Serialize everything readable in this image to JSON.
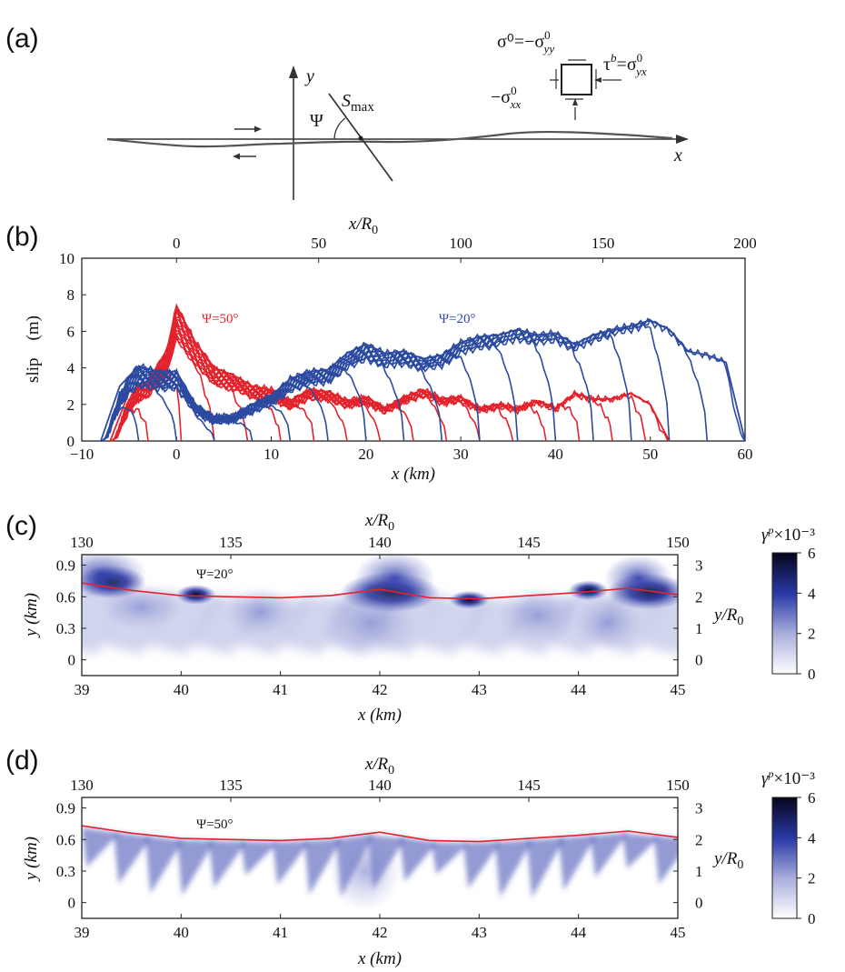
{
  "figure": {
    "panel_labels": [
      "(a)",
      "(b)",
      "(c)",
      "(d)"
    ],
    "panel_a": {
      "y_axis": "y",
      "x_axis": "x",
      "psi": "Ψ",
      "smax": "S",
      "smax_sub": "max",
      "sigma0": "σ⁰=−σ",
      "sigma0_sup": "0",
      "sigma0_sub": "yy",
      "tau": "τ",
      "tau_sup": "b",
      "tau_eq": "=σ",
      "tau_eq_sup": "0",
      "tau_eq_sub": "yx",
      "sxx": "−σ",
      "sxx_sup": "0",
      "sxx_sub": "xx"
    },
    "panel_b": {
      "top_axis_label": "x/R",
      "top_axis_sub": "0",
      "ylabel": "slip    (m)",
      "xlabel": "x (km)",
      "red_label": "Ψ=50°",
      "blue_label": "Ψ=20°"
    },
    "panel_c": {
      "top_axis_label": "x/R",
      "top_axis_sub": "0",
      "ylabel": "y (km)",
      "right_label": "y/R",
      "right_sub": "0",
      "xlabel": "x (km)",
      "annotation": "Ψ=20°",
      "colorbar_title": "γ",
      "colorbar_sup": "p",
      "colorbar_unit": "×10⁻³"
    },
    "panel_d": {
      "top_axis_label": "x/R",
      "top_axis_sub": "0",
      "ylabel": "y (km)",
      "right_label": "y/R",
      "right_sub": "0",
      "xlabel": "x (km)",
      "annotation": "Ψ=50°",
      "colorbar_title": "γ",
      "colorbar_sup": "p",
      "colorbar_unit": "×10⁻³"
    }
  },
  "chart_data": [
    {
      "type": "line",
      "panel": "(b)",
      "xlabel": "x (km)",
      "ylabel": "slip    (m)",
      "xlim": [
        -10,
        60
      ],
      "ylim": [
        0,
        10
      ],
      "x_ticks": [
        -10,
        0,
        10,
        20,
        30,
        40,
        50,
        60
      ],
      "y_ticks": [
        0,
        2,
        4,
        6,
        8,
        10
      ],
      "top_axis": {
        "label": "x/R0",
        "ticks": [
          0,
          50,
          100,
          150,
          200
        ]
      },
      "colors": {
        "red": "#e3232c",
        "blue": "#2b4aa0"
      },
      "series": [
        {
          "name": "Ψ=50°",
          "color": "#e3232c",
          "x": [
            -7,
            -5,
            -3,
            -1,
            0,
            2,
            4,
            6,
            8,
            10,
            12,
            14,
            16,
            18,
            20,
            22,
            24,
            26,
            28,
            30,
            32,
            34,
            36,
            38,
            40,
            42,
            44,
            46,
            48,
            50,
            52
          ],
          "y": [
            0,
            2.7,
            3.3,
            5.0,
            7.4,
            5.4,
            4.0,
            3.6,
            3.0,
            2.8,
            2.2,
            2.8,
            2.7,
            2.2,
            2.4,
            1.8,
            2.4,
            2.8,
            2.3,
            2.4,
            1.8,
            2.0,
            1.8,
            2.2,
            1.8,
            2.6,
            2.3,
            2.3,
            2.6,
            2.0,
            0
          ]
        },
        {
          "name": "Ψ=20°",
          "color": "#2b4aa0",
          "x": [
            -8,
            -6,
            -4,
            -2,
            0,
            2,
            4,
            6,
            8,
            10,
            12,
            14,
            16,
            18,
            20,
            22,
            24,
            26,
            28,
            30,
            32,
            34,
            36,
            38,
            40,
            42,
            44,
            46,
            48,
            50,
            52,
            54,
            56,
            58,
            60
          ],
          "y": [
            0,
            3.0,
            4.1,
            3.8,
            3.8,
            2.0,
            1.3,
            1.4,
            2.0,
            2.5,
            3.4,
            3.8,
            3.9,
            4.8,
            5.3,
            4.8,
            4.9,
            4.5,
            4.7,
            5.4,
            5.7,
            5.8,
            6.1,
            5.8,
            5.9,
            5.3,
            5.8,
            6.1,
            6.3,
            6.6,
            6.1,
            4.9,
            4.7,
            4.3,
            0
          ]
        }
      ]
    },
    {
      "type": "heatmap",
      "panel": "(c)",
      "xlabel": "x (km)",
      "ylabel": "y (km)",
      "xlim": [
        39,
        45
      ],
      "ylim": [
        -0.15,
        1.0
      ],
      "x_ticks": [
        39,
        40,
        41,
        42,
        43,
        44,
        45
      ],
      "y_ticks": [
        0,
        0.3,
        0.6,
        0.9
      ],
      "top_axis": {
        "label": "x/R0",
        "ticks": [
          130,
          135,
          140,
          145,
          150
        ]
      },
      "right_axis": {
        "label": "y/R0",
        "ticks": [
          0,
          1,
          2,
          3
        ]
      },
      "colorbar": {
        "label": "γp×10−3",
        "ticks": [
          0,
          2,
          4,
          6
        ]
      },
      "fault_trace": {
        "color": "#e3232c",
        "x": [
          39,
          39.5,
          40,
          40.5,
          41,
          41.5,
          42,
          42.5,
          43,
          43.5,
          44,
          44.5,
          45
        ],
        "y": [
          0.73,
          0.66,
          0.61,
          0.6,
          0.59,
          0.61,
          0.67,
          0.59,
          0.58,
          0.61,
          0.64,
          0.68,
          0.62
        ]
      }
    },
    {
      "type": "heatmap",
      "panel": "(d)",
      "xlabel": "x (km)",
      "ylabel": "y (km)",
      "xlim": [
        39,
        45
      ],
      "ylim": [
        -0.15,
        1.0
      ],
      "x_ticks": [
        39,
        40,
        41,
        42,
        43,
        44,
        45
      ],
      "y_ticks": [
        0,
        0.3,
        0.6,
        0.9
      ],
      "top_axis": {
        "label": "x/R0",
        "ticks": [
          130,
          135,
          140,
          145,
          150
        ]
      },
      "right_axis": {
        "label": "y/R0",
        "ticks": [
          0,
          1,
          2,
          3
        ]
      },
      "colorbar": {
        "label": "γp×10−3",
        "ticks": [
          0,
          2,
          4,
          6
        ]
      },
      "fault_trace": {
        "color": "#e3232c",
        "x": [
          39,
          39.5,
          40,
          40.5,
          41,
          41.5,
          42,
          42.5,
          43,
          43.5,
          44,
          44.5,
          45
        ],
        "y": [
          0.73,
          0.66,
          0.61,
          0.6,
          0.59,
          0.61,
          0.67,
          0.59,
          0.58,
          0.61,
          0.64,
          0.68,
          0.62
        ]
      }
    }
  ]
}
